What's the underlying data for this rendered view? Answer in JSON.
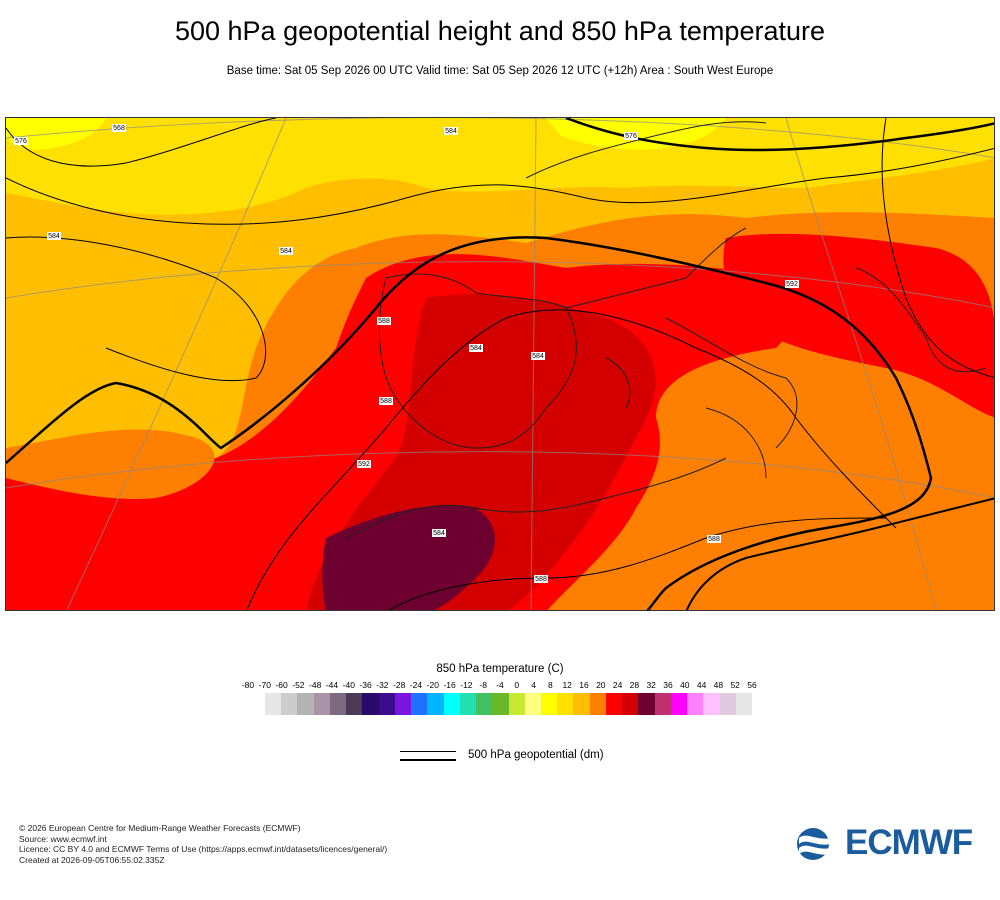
{
  "header": {
    "title": "500 hPa geopotential height and 850 hPa temperature",
    "subtitle": "Base time: Sat 05 Sep 2026 00 UTC Valid time: Sat 05 Sep 2026 12 UTC (+12h) Area : South West Europe"
  },
  "map": {
    "contour_labels": [
      "576",
      "584",
      "568",
      "576",
      "584",
      "588",
      "584",
      "584",
      "584",
      "588",
      "592",
      "592",
      "588",
      "588",
      "584"
    ]
  },
  "legend": {
    "title": "850 hPa temperature (C)",
    "ticks": [
      "-80",
      "-70",
      "-60",
      "-52",
      "-48",
      "-44",
      "-40",
      "-36",
      "-32",
      "-28",
      "-24",
      "-20",
      "-16",
      "-12",
      "-8",
      "-4",
      "0",
      "4",
      "8",
      "12",
      "16",
      "20",
      "24",
      "28",
      "32",
      "36",
      "40",
      "44",
      "48",
      "52",
      "56"
    ],
    "colors": [
      "#e6e6e6",
      "#cccccc",
      "#b3b3b3",
      "#a893a8",
      "#7e6a80",
      "#4a3a55",
      "#2a0a6a",
      "#3c0a8c",
      "#7a14e0",
      "#1e70ff",
      "#00b4ff",
      "#00ffff",
      "#20e0b0",
      "#40c060",
      "#6ab82a",
      "#c8e832",
      "#ffff80",
      "#ffff00",
      "#ffe000",
      "#ffbf00",
      "#ff7f00",
      "#ff0000",
      "#d40000",
      "#6e0030",
      "#c0306e",
      "#ff00ff",
      "#ff80ff",
      "#ffc0ff",
      "#e0c8e0",
      "#e6e6e6"
    ],
    "geo_label": "500 hPa geopotential (dm)"
  },
  "footer": {
    "lines": [
      "© 2026 European Centre for Medium-Range Weather Forecasts (ECMWF)",
      "Source: www.ecmwf.int",
      "Licence: CC BY 4.0 and ECMWF Terms of Use (https://apps.ecmwf.int/datasets/licences/general/)",
      "Created at 2026-09-05T06:55:02.335Z"
    ]
  },
  "logo": {
    "text": "ECMWF",
    "brand_color": "#1a5c9e"
  }
}
